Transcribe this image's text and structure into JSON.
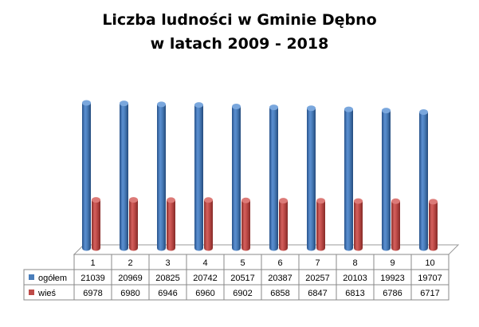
{
  "chart_data": {
    "type": "bar",
    "title_line1": "Liczba ludności w Gminie Dębno",
    "title_line2": "w latach 2009 - 2018",
    "categories": [
      "1",
      "2",
      "3",
      "4",
      "5",
      "6",
      "7",
      "8",
      "9",
      "10"
    ],
    "series": [
      {
        "name": "ogółem",
        "color": "#4a7ebb",
        "values": [
          21039,
          20969,
          20825,
          20742,
          20517,
          20387,
          20257,
          20103,
          19923,
          19707
        ]
      },
      {
        "name": "wieś",
        "color": "#be4b48",
        "values": [
          6978,
          6980,
          6946,
          6960,
          6902,
          6858,
          6847,
          6813,
          6786,
          6717
        ]
      }
    ],
    "ylim": [
      0,
      21039
    ],
    "grid": false,
    "legend": "data-table-left",
    "render": "3d-cylinder"
  }
}
